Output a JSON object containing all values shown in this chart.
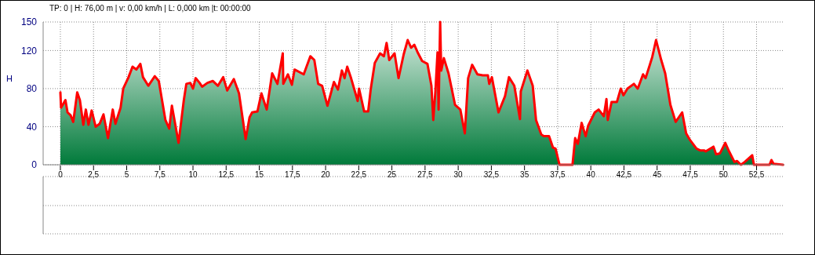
{
  "chart_data": {
    "type": "area",
    "title": "TP: 0 | H: 76,00 m | v: 0,00 km/h | L: 0,000 km |t: 00:00:00",
    "ylabel": "H",
    "color": "#ff0000",
    "grid": true,
    "x": [
      0,
      0.05,
      0.18,
      0.38,
      0.54,
      0.77,
      0.97,
      1.27,
      1.47,
      1.73,
      1.92,
      2.12,
      2.36,
      2.66,
      2.96,
      3.25,
      3.59,
      3.95,
      4.15,
      4.54,
      4.74,
      5.14,
      5.44,
      5.73,
      6.03,
      6.23,
      6.63,
      7.12,
      7.42,
      7.92,
      8.21,
      8.41,
      8.91,
      9.31,
      9.5,
      9.8,
      10,
      10.2,
      10.5,
      10.69,
      11.09,
      11.49,
      11.88,
      12.28,
      12.58,
      13.08,
      13.47,
      13.97,
      14.27,
      14.46,
      14.86,
      15.16,
      15.56,
      15.97,
      16.37,
      16.77,
      16.81,
      17.16,
      17.46,
      17.66,
      18.35,
      18.85,
      19.15,
      19.44,
      19.74,
      20.14,
      20.63,
      20.93,
      21.23,
      21.43,
      21.63,
      21.92,
      22.42,
      22.52,
      22.91,
      23.21,
      23.41,
      23.71,
      24.11,
      24.4,
      24.6,
      24.8,
      25.2,
      25.5,
      25.89,
      26.19,
      26.45,
      26.69,
      26.98,
      27.28,
      27.68,
      27.98,
      28.12,
      28.28,
      28.44,
      28.52,
      28.64,
      28.72,
      28.92,
      29.27,
      29.76,
      30.16,
      30.5,
      30.75,
      31.05,
      31.45,
      31.85,
      32.24,
      32.34,
      32.54,
      33.04,
      33.53,
      33.83,
      34.23,
      34.66,
      34.72,
      35.22,
      35.62,
      35.87,
      36.26,
      36.46,
      36.85,
      37.15,
      37.34,
      37.64,
      38.62,
      38.82,
      39.02,
      39.31,
      39.61,
      39.8,
      40.3,
      40.59,
      40.98,
      41.18,
      41.28,
      41.57,
      41.97,
      42.26,
      42.46,
      42.76,
      43.25,
      43.54,
      43.94,
      44.13,
      44.43,
      44.63,
      44.92,
      45.31,
      45.61,
      46,
      46.4,
      46.89,
      47.19,
      47.48,
      47.97,
      48.27,
      48.56,
      48.66,
      49.25,
      49.45,
      49.74,
      50.14,
      50.43,
      50.83,
      51.02,
      51.32,
      51.61,
      52.17,
      52.3,
      53.48,
      53.62,
      53.78,
      54.5
    ],
    "values": [
      76,
      60,
      63,
      68,
      55,
      52,
      45,
      76,
      68,
      42,
      58,
      42,
      57,
      40,
      43,
      53,
      28,
      58,
      43,
      60,
      80,
      92,
      103,
      100,
      106,
      92,
      83,
      93,
      88,
      47,
      38,
      62,
      23,
      68,
      85,
      86,
      80,
      91,
      86,
      82,
      86,
      88,
      83,
      92,
      78,
      90,
      75,
      27,
      50,
      55,
      56,
      75,
      58,
      96,
      85,
      117,
      85,
      95,
      84,
      100,
      95,
      114,
      110,
      85,
      83,
      62,
      87,
      79,
      99,
      91,
      103,
      91,
      67,
      80,
      56,
      56,
      80,
      107,
      117,
      114,
      128,
      110,
      117,
      91,
      116,
      131,
      123,
      126,
      117,
      109,
      106,
      83,
      47,
      77,
      118,
      58,
      150,
      99,
      112,
      96,
      63,
      58,
      33,
      91,
      105,
      95,
      94,
      94,
      85,
      92,
      55,
      72,
      92,
      83,
      48,
      77,
      99,
      83,
      47,
      32,
      30,
      30,
      18,
      17,
      0,
      0,
      28,
      22,
      44,
      30,
      41,
      55,
      58,
      51,
      69,
      47,
      66,
      66,
      80,
      73,
      80,
      85,
      80,
      95,
      91,
      104,
      113,
      131,
      110,
      96,
      63,
      45,
      55,
      33,
      26,
      17,
      15,
      15,
      14,
      19,
      11,
      12,
      23,
      14,
      3,
      4,
      0,
      3,
      10,
      0,
      0,
      5,
      1,
      0
    ],
    "xlim": [
      -1.3,
      54.6
    ],
    "xticks": [
      0,
      {
        "value": 2.5,
        "label": "2,5"
      },
      5,
      {
        "value": 7.5,
        "label": "7,5"
      },
      10,
      {
        "value": 12.5,
        "label": "12,5"
      },
      15,
      {
        "value": 17.5,
        "label": "17,5"
      },
      20,
      {
        "value": 22.5,
        "label": "22,5"
      },
      25,
      {
        "value": 27.5,
        "label": "27,5"
      },
      30,
      {
        "value": 32.5,
        "label": "32,5"
      },
      35,
      {
        "value": 37.5,
        "label": "37,5"
      },
      40,
      {
        "value": 42.5,
        "label": "42,5"
      },
      45,
      {
        "value": 47.5,
        "label": "47,5"
      },
      50,
      {
        "value": 52.5,
        "label": "52,5"
      }
    ],
    "ylim": [
      0,
      150
    ],
    "yticks": [
      0,
      40,
      80,
      120,
      150
    ]
  }
}
